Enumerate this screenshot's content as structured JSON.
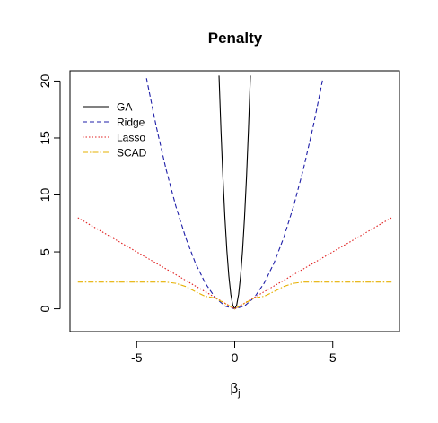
{
  "chart_data": {
    "type": "line",
    "title": "Penalty",
    "xlabel": "β",
    "xlabel_subscript": "j",
    "ylabel": "",
    "xlim": [
      -8.4,
      8.4
    ],
    "ylim": [
      -2,
      20.9
    ],
    "x_ticks": [
      -5,
      0,
      5
    ],
    "x_tick_labels": [
      "-5",
      "0",
      "5"
    ],
    "y_ticks": [
      0,
      5,
      10,
      15,
      20
    ],
    "y_tick_labels": [
      "0",
      "5",
      "10",
      "15",
      "20"
    ],
    "grid": false,
    "legend_position": "top-left",
    "series": [
      {
        "name": "GA",
        "color": "#000000",
        "style": "solid",
        "points": [
          [
            -0.8,
            20.48
          ],
          [
            -0.7,
            15.68
          ],
          [
            -0.6,
            11.52
          ],
          [
            -0.5,
            8.0
          ],
          [
            -0.4,
            5.12
          ],
          [
            -0.3,
            2.88
          ],
          [
            -0.2,
            1.28
          ],
          [
            -0.1,
            0.32
          ],
          [
            0,
            0
          ],
          [
            0.1,
            0.32
          ],
          [
            0.2,
            1.28
          ],
          [
            0.3,
            2.88
          ],
          [
            0.4,
            5.12
          ],
          [
            0.5,
            8.0
          ],
          [
            0.6,
            11.52
          ],
          [
            0.7,
            15.68
          ],
          [
            0.8,
            20.48
          ]
        ]
      },
      {
        "name": "Ridge",
        "color": "#1f1fa8",
        "style": "dashed",
        "points": [
          [
            -4.5,
            20.25
          ],
          [
            -4,
            16
          ],
          [
            -3.5,
            12.25
          ],
          [
            -3,
            9
          ],
          [
            -2.5,
            6.25
          ],
          [
            -2,
            4
          ],
          [
            -1.5,
            2.25
          ],
          [
            -1,
            1
          ],
          [
            -0.5,
            0.25
          ],
          [
            0,
            0
          ],
          [
            0.5,
            0.25
          ],
          [
            1,
            1
          ],
          [
            1.5,
            2.25
          ],
          [
            2,
            4
          ],
          [
            2.5,
            6.25
          ],
          [
            3,
            9
          ],
          [
            3.5,
            12.25
          ],
          [
            4,
            16
          ],
          [
            4.5,
            20.25
          ]
        ]
      },
      {
        "name": "Lasso",
        "color": "#e02020",
        "style": "dotted",
        "points": [
          [
            -8,
            8
          ],
          [
            -1,
            1
          ],
          [
            0,
            0
          ],
          [
            1,
            1
          ],
          [
            8,
            8
          ]
        ]
      },
      {
        "name": "SCAD",
        "color": "#e6b000",
        "style": "dashdot",
        "points": [
          [
            -8,
            2.35
          ],
          [
            -3.7,
            2.35
          ],
          [
            -3.5,
            2.35
          ],
          [
            -3.0,
            2.24
          ],
          [
            -2.5,
            1.96
          ],
          [
            -2.0,
            1.51
          ],
          [
            -1.5,
            1.1
          ],
          [
            -1,
            0.95
          ],
          [
            -0.5,
            0.48
          ],
          [
            0,
            0
          ],
          [
            0.5,
            0.48
          ],
          [
            1,
            0.95
          ],
          [
            1.5,
            1.1
          ],
          [
            2.0,
            1.51
          ],
          [
            2.5,
            1.96
          ],
          [
            3.0,
            2.24
          ],
          [
            3.5,
            2.35
          ],
          [
            3.7,
            2.35
          ],
          [
            8,
            2.35
          ]
        ]
      }
    ]
  }
}
